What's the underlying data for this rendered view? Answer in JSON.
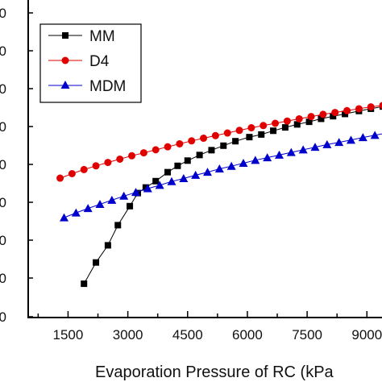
{
  "chart_data": {
    "type": "line",
    "xlabel": "Evaporation Pressure of RC (kPa",
    "ylabel": "",
    "x_ticks": [
      "1500",
      "3000",
      "4500",
      "6000",
      "7500",
      "9000"
    ],
    "y_tick_labels": [
      "0",
      "0",
      "0",
      "0",
      "0",
      "0",
      "0",
      "0",
      "0"
    ],
    "xlim": [
      500,
      9600
    ],
    "grid": false,
    "legend_position": "top-left",
    "series": [
      {
        "name": "MM",
        "color": "#000000",
        "marker": "square",
        "x": [
          1900,
          2200,
          2500,
          2750,
          3050,
          3250,
          3450,
          3700,
          4000,
          4250,
          4500,
          4800,
          5100,
          5400,
          5700,
          6050,
          6350,
          6650,
          6950,
          7250,
          7550,
          7850,
          8150,
          8450,
          8800,
          9100,
          9400
        ],
        "y": [
          0.97,
          1.54,
          2.0,
          2.54,
          3.05,
          3.4,
          3.55,
          3.72,
          3.96,
          4.13,
          4.27,
          4.42,
          4.55,
          4.67,
          4.79,
          4.9,
          4.97,
          5.07,
          5.16,
          5.24,
          5.31,
          5.39,
          5.46,
          5.52,
          5.6,
          5.66,
          5.72
        ]
      },
      {
        "name": "D4",
        "color": "#e00000",
        "marker": "circle",
        "x": [
          1300,
          1600,
          1900,
          2200,
          2500,
          2800,
          3100,
          3400,
          3700,
          4000,
          4300,
          4600,
          4900,
          5200,
          5500,
          5800,
          6100,
          6400,
          6700,
          7000,
          7300,
          7600,
          7900,
          8200,
          8500,
          8800,
          9100,
          9400
        ],
        "y": [
          3.8,
          3.92,
          4.03,
          4.13,
          4.22,
          4.31,
          4.4,
          4.48,
          4.56,
          4.64,
          4.72,
          4.8,
          4.87,
          4.94,
          5.01,
          5.08,
          5.15,
          5.21,
          5.27,
          5.33,
          5.39,
          5.45,
          5.51,
          5.56,
          5.61,
          5.66,
          5.71,
          5.75
        ]
      },
      {
        "name": "MDM",
        "color": "#0000cc",
        "marker": "triangle",
        "x": [
          1400,
          1700,
          2000,
          2300,
          2600,
          2900,
          3200,
          3500,
          3800,
          4100,
          4400,
          4700,
          5000,
          5300,
          5600,
          5900,
          6200,
          6500,
          6800,
          7100,
          7400,
          7700,
          8000,
          8300,
          8600,
          8900,
          9200,
          9500
        ],
        "y": [
          2.74,
          2.87,
          2.99,
          3.1,
          3.21,
          3.32,
          3.42,
          3.52,
          3.61,
          3.71,
          3.79,
          3.88,
          3.96,
          4.05,
          4.12,
          4.2,
          4.28,
          4.35,
          4.42,
          4.49,
          4.56,
          4.63,
          4.7,
          4.76,
          4.82,
          4.89,
          4.95,
          5.01
        ]
      }
    ]
  }
}
